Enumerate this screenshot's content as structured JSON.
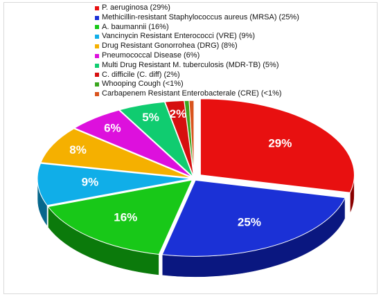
{
  "chart_data": {
    "type": "pie",
    "title": "",
    "style": "3D exploded pie",
    "legend_position": "top",
    "slices": [
      {
        "name": "P. aeruginosa (29%)",
        "value": 29,
        "label": "29%",
        "color": "#e81010",
        "side": "#8a0000"
      },
      {
        "name": "Methicillin-resistant Staphylococcus aureus (MRSA) (25%)",
        "value": 25,
        "label": "25%",
        "color": "#1b31d6",
        "side": "#0a1780"
      },
      {
        "name": "A. baumannii (16%)",
        "value": 16,
        "label": "16%",
        "color": "#18c818",
        "side": "#0b7a0b"
      },
      {
        "name": "Vancinycin Resistant Enterococci (VRE) (9%)",
        "value": 9,
        "label": "9%",
        "color": "#10aee8",
        "side": "#06678c"
      },
      {
        "name": "Drug Resistant Gonorrohea (DRG) (8%)",
        "value": 8,
        "label": "8%",
        "color": "#f5b000",
        "side": "#9c6e00"
      },
      {
        "name": "Pneumococcal Disease (6%)",
        "value": 6,
        "label": "6%",
        "color": "#dd10dd",
        "side": "#8a068a"
      },
      {
        "name": "Multi Drug Resistant M. tuberculosis (MDR-TB) (5%)",
        "value": 5,
        "label": "5%",
        "color": "#10cc70",
        "side": "#087a42"
      },
      {
        "name": "C. difficile (C. diff) (2%)",
        "value": 2,
        "label": "2%",
        "color": "#d60f0f",
        "side": "#820606"
      },
      {
        "name": "Whooping Cough (<1%)",
        "value": 0.5,
        "label": "",
        "color": "#3aa61e",
        "side": "#23650f"
      },
      {
        "name": "Carbapenem Resistant Enterobacterale (CRE) (<1%)",
        "value": 0.5,
        "label": "",
        "color": "#d9541e",
        "side": "#84300f"
      }
    ]
  }
}
